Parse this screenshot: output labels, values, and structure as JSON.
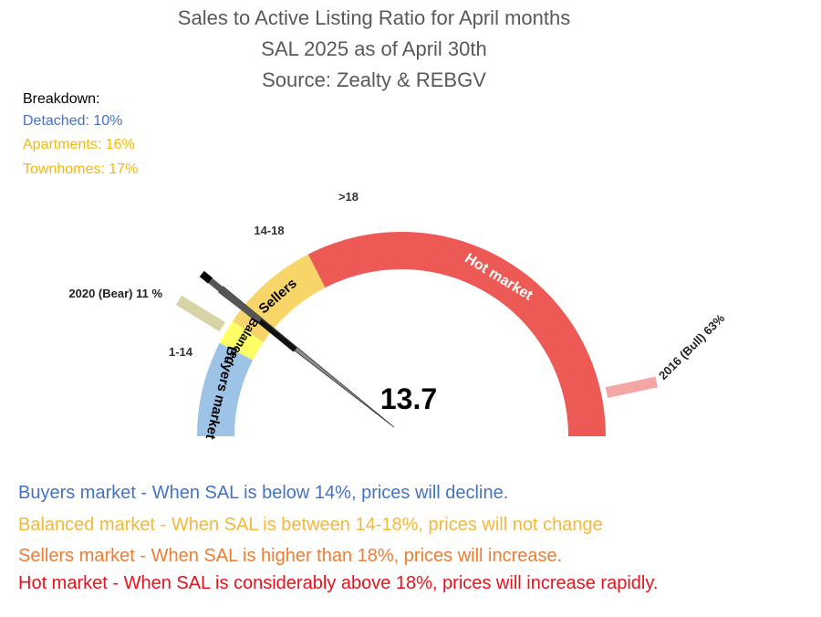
{
  "header": {
    "title": "Sales to Active Listing Ratio for April months",
    "subtitle": "SAL 2025 as of April 30th",
    "source": "Source: Zealty & REBGV"
  },
  "breakdown": {
    "heading": "Breakdown:",
    "items": [
      {
        "label": "Detached: 10%",
        "color": "#4472C4"
      },
      {
        "label": "Apartments: 16%",
        "color": "#F2B90F"
      },
      {
        "label": "Townhomes: 17%",
        "color": "#F2B90F"
      }
    ]
  },
  "chart_data": {
    "type": "gauge",
    "unit": "%",
    "value": 13.7,
    "value_label": "13.7",
    "min": 0,
    "max": 63,
    "zones": [
      {
        "name": "Buyers market",
        "range_label": "1-14",
        "from": 0,
        "to": 9.5,
        "color": "#9DC3E6"
      },
      {
        "name": "Balanced",
        "range_label": "",
        "from": 9.5,
        "to": 12,
        "color": "#FFFF66"
      },
      {
        "name": "Sellers",
        "range_label": "14-18",
        "from": 12,
        "to": 22,
        "color": "#F8D568"
      },
      {
        "name": "Hot market",
        "range_label": ">18",
        "from": 22,
        "to": 63,
        "color": "#ED5A55"
      }
    ],
    "markers": [
      {
        "label": "2020 (Bear) 11 %",
        "value": 11,
        "color": "#D6D3A6"
      },
      {
        "label": "2016 (Bull) 63%",
        "value": 63,
        "color": "#F4A6A4"
      }
    ]
  },
  "notes": [
    {
      "text": "Buyers market - When SAL is below 14%, prices will decline.",
      "color": "#4472C4"
    },
    {
      "text": "Balanced market - When SAL is between 14-18%, prices will not change",
      "color": "#F4B83A"
    },
    {
      "text": "Sellers market  - When SAL is higher than 18%, prices will increase.",
      "color": "#ED7D31"
    },
    {
      "text": "Hot market - When SAL is considerably above 18%, prices will increase rapidly.",
      "color": "#E8111B"
    }
  ]
}
